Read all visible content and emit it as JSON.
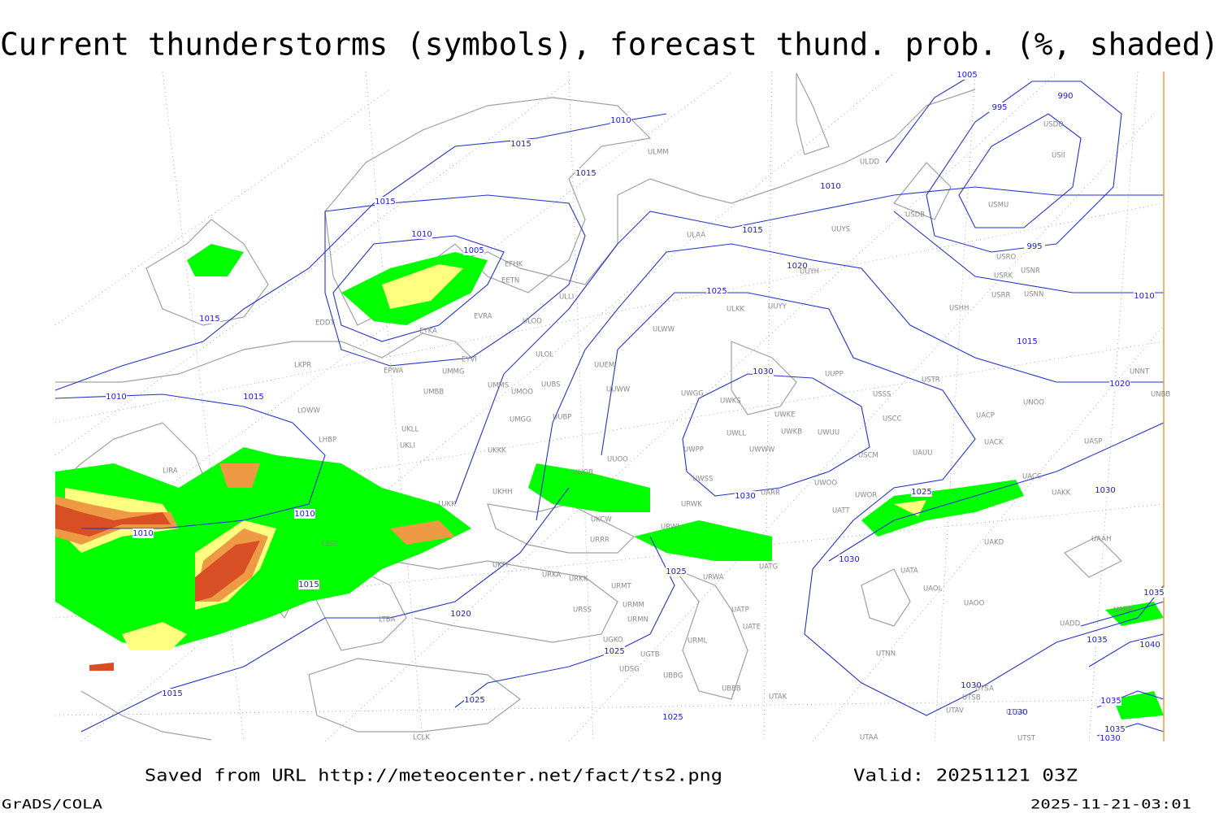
{
  "title": "Current thunderstorms (symbols), forecast thund. prob. (%, shaded)",
  "footer": {
    "source": "Saved from URL http://meteocenter.net/fact/ts2.png",
    "valid": "Valid: 20251121 03Z",
    "software": "GrADS/COLA",
    "timestamp": "2025-11-21-03:01"
  },
  "isobar_labels": [
    "1005",
    "995",
    "990",
    "1015",
    "1010",
    "1015",
    "1010",
    "1015",
    "1010",
    "1005",
    "1015",
    "1020",
    "1025",
    "995",
    "1010",
    "1015",
    "1015",
    "1030",
    "1020",
    "1010",
    "1015",
    "1030",
    "1025",
    "1030",
    "1010",
    "1010",
    "1030",
    "1015",
    "1025",
    "1020",
    "1035",
    "1025",
    "1035",
    "1040",
    "1015",
    "1025",
    "1030",
    "1035",
    "1030",
    "1025",
    "1035",
    "1030"
  ],
  "stations": [
    "ULMM",
    "ULDD",
    "USDD",
    "USII",
    "USMU",
    "USDB",
    "ULAA",
    "UUYS",
    "USRO",
    "USNR",
    "USRK",
    "UUYH",
    "EFHK",
    "EETN",
    "USRR",
    "USNN",
    "USHH",
    "ULLI",
    "UUYY",
    "ULKK",
    "EVRA",
    "ULOD",
    "EDDT",
    "ULWW",
    "EYKA",
    "ULOL",
    "EYVI",
    "UUEM",
    "EPWA",
    "UMMG",
    "UUPP",
    "USTR",
    "UNNT",
    "LKPR",
    "UMMS",
    "UUBS",
    "UMOO",
    "UUWW",
    "UWGG",
    "USSS",
    "UNBB",
    "UMBB",
    "UWKS",
    "UNOO",
    "LOWW",
    "UKLL",
    "UMGG",
    "UUBP",
    "UWKE",
    "USCC",
    "UACP",
    "LHBP",
    "UKLI",
    "UWLL",
    "UWKB",
    "UWUU",
    "UACK",
    "UASP",
    "UKKK",
    "UWPP",
    "UWWW",
    "USCM",
    "UAUU",
    "LIRA",
    "UUOO",
    "UUOB",
    "UWSS",
    "UACC",
    "UKHH",
    "UARR",
    "UWOO",
    "UWOR",
    "UAKK",
    "LUKK",
    "URWK",
    "UATT",
    "UKCW",
    "URWI",
    "UAKD",
    "UAAH",
    "LBSF",
    "URRR",
    "UKFF",
    "URWA",
    "UATG",
    "UATA",
    "URKA",
    "URKK",
    "URMT",
    "UAOL",
    "UAOO",
    "LTBA",
    "URSS",
    "URMM",
    "UATP",
    "UARM",
    "URMN",
    "UATE",
    "UADD",
    "URML",
    "UGKO",
    "UGTB",
    "UTNN",
    "UDSG",
    "UBBG",
    "UBBB",
    "UTAK",
    "UTSA",
    "UTSB",
    "UTAV",
    "UTSK",
    "UTAA",
    "LCLK",
    "UTST"
  ]
}
